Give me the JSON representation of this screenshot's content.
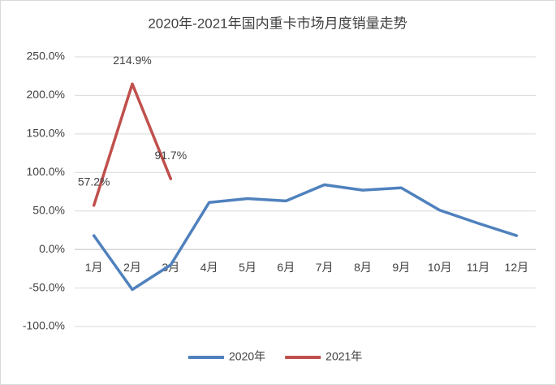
{
  "chart_data": {
    "type": "line",
    "title": "2020年-2021年国内重卡市场月度销量走势",
    "categories": [
      "1月",
      "2月",
      "3月",
      "4月",
      "5月",
      "6月",
      "7月",
      "8月",
      "9月",
      "10月",
      "11月",
      "12月"
    ],
    "series": [
      {
        "name": "2020年",
        "color": "#4f81bd",
        "values": [
          18,
          -52,
          -20,
          61,
          66,
          63,
          84,
          77,
          80,
          51,
          34,
          18
        ]
      },
      {
        "name": "2021年",
        "color": "#c0504d",
        "values": [
          57.2,
          214.9,
          91.7,
          null,
          null,
          null,
          null,
          null,
          null,
          null,
          null,
          null
        ],
        "value_labels": [
          "57.2%",
          "214.9%",
          "91.7%",
          null,
          null,
          null,
          null,
          null,
          null,
          null,
          null,
          null
        ]
      }
    ],
    "ylim": [
      -100,
      250
    ],
    "yticks": [
      {
        "value": -100,
        "label": "-100.0%"
      },
      {
        "value": -50,
        "label": "-50.0%"
      },
      {
        "value": 0,
        "label": "0.0%"
      },
      {
        "value": 50,
        "label": "50.0%"
      },
      {
        "value": 100,
        "label": "100.0%"
      },
      {
        "value": 150,
        "label": "150.0%"
      },
      {
        "value": 200,
        "label": "200.0%"
      },
      {
        "value": 250,
        "label": "250.0%"
      }
    ],
    "grid": true,
    "legend": "bottom"
  }
}
